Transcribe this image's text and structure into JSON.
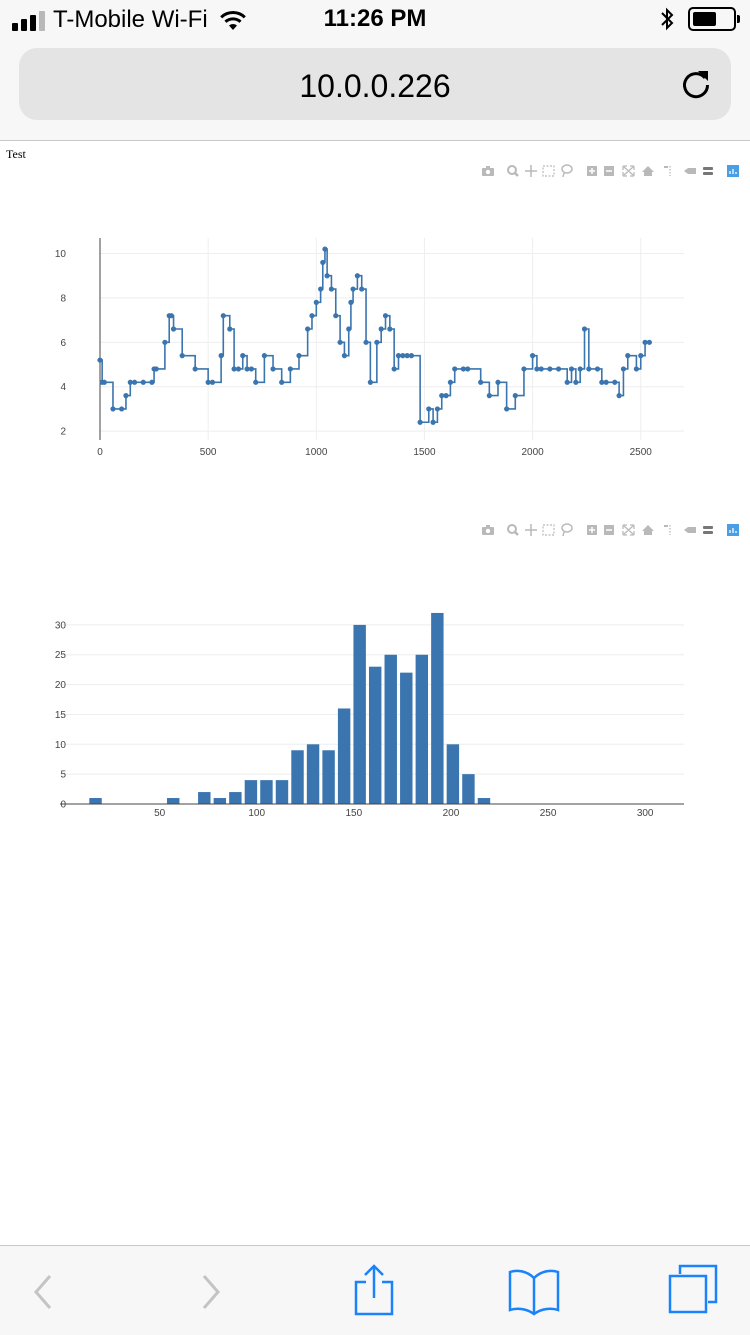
{
  "status_bar": {
    "carrier": "T-Mobile Wi-Fi",
    "time": "11:26 PM",
    "icons": [
      "signal-icon",
      "wifi-icon",
      "bluetooth-icon",
      "battery-icon"
    ]
  },
  "browser": {
    "url": "10.0.0.226",
    "toolbar_icons": [
      "back-icon",
      "forward-icon",
      "share-icon",
      "bookmarks-icon",
      "tabs-icon"
    ]
  },
  "page": {
    "label": "Test"
  },
  "modebar_icons": [
    "camera-icon",
    "zoom-icon",
    "pan-icon",
    "box-select-icon",
    "lasso-icon",
    "zoom-in-icon",
    "zoom-out-icon",
    "autoscale-icon",
    "reset-axes-icon",
    "spike-lines-icon",
    "hover-closest-icon",
    "hover-compare-icon",
    "plotly-logo-icon"
  ],
  "colors": {
    "series": "#3b75af",
    "grid": "#eeeeee",
    "axis": "#444444"
  },
  "chart_data": [
    {
      "type": "line",
      "mode": "lines+markers",
      "line_shape": "step",
      "x": [
        0,
        10,
        20,
        60,
        100,
        120,
        140,
        160,
        200,
        240,
        250,
        260,
        300,
        320,
        330,
        340,
        380,
        440,
        500,
        520,
        560,
        570,
        600,
        620,
        640,
        660,
        680,
        700,
        720,
        760,
        800,
        840,
        880,
        920,
        960,
        980,
        1000,
        1020,
        1030,
        1040,
        1050,
        1070,
        1090,
        1110,
        1130,
        1150,
        1160,
        1170,
        1190,
        1210,
        1230,
        1250,
        1280,
        1300,
        1320,
        1340,
        1360,
        1380,
        1400,
        1420,
        1440,
        1480,
        1520,
        1540,
        1560,
        1580,
        1600,
        1620,
        1640,
        1680,
        1700,
        1760,
        1800,
        1840,
        1880,
        1920,
        1960,
        2000,
        2020,
        2040,
        2080,
        2120,
        2160,
        2180,
        2200,
        2220,
        2240,
        2260,
        2300,
        2320,
        2340,
        2380,
        2400,
        2420,
        2440,
        2480,
        2500,
        2520,
        2540
      ],
      "y": [
        5.2,
        4.2,
        4.2,
        3.0,
        3.0,
        3.6,
        4.2,
        4.2,
        4.2,
        4.2,
        4.8,
        4.8,
        6.0,
        7.2,
        7.2,
        6.6,
        5.4,
        4.8,
        4.2,
        4.2,
        5.4,
        7.2,
        6.6,
        4.8,
        4.8,
        5.4,
        4.8,
        4.8,
        4.2,
        5.4,
        4.8,
        4.2,
        4.8,
        5.4,
        6.6,
        7.2,
        7.8,
        8.4,
        9.6,
        10.2,
        9.0,
        8.4,
        7.2,
        6.0,
        5.4,
        6.6,
        7.8,
        8.4,
        9.0,
        8.4,
        6.0,
        4.2,
        6.0,
        6.6,
        7.2,
        6.6,
        4.8,
        5.4,
        5.4,
        5.4,
        5.4,
        2.4,
        3.0,
        2.4,
        3.0,
        3.6,
        3.6,
        4.2,
        4.8,
        4.8,
        4.8,
        4.2,
        3.6,
        4.2,
        3.0,
        3.6,
        4.8,
        5.4,
        4.8,
        4.8,
        4.8,
        4.8,
        4.2,
        4.8,
        4.2,
        4.8,
        6.6,
        4.8,
        4.8,
        4.2,
        4.2,
        4.2,
        3.6,
        4.8,
        5.4,
        4.8,
        5.4,
        6.0,
        6.0
      ],
      "xlim": [
        0,
        2700
      ],
      "ylim": [
        1.6,
        10.7
      ],
      "x_ticks": [
        0,
        500,
        1000,
        1500,
        2000,
        2500
      ],
      "y_ticks": [
        2,
        4,
        6,
        8,
        10
      ],
      "grid": true
    },
    {
      "type": "bar",
      "x": [
        17,
        57,
        73,
        81,
        89,
        97,
        105,
        113,
        121,
        129,
        137,
        145,
        153,
        161,
        169,
        177,
        185,
        193,
        201,
        209,
        217
      ],
      "values": [
        1,
        1,
        2,
        1,
        2,
        4,
        4,
        4,
        9,
        10,
        9,
        16,
        30,
        23,
        25,
        22,
        25,
        32,
        10,
        5,
        1
      ],
      "bin_width": 8,
      "xlim": [
        9,
        320
      ],
      "ylim": [
        0,
        33.5
      ],
      "x_ticks": [
        50,
        100,
        150,
        200,
        250,
        300
      ],
      "y_ticks": [
        0,
        5,
        10,
        15,
        20,
        25,
        30
      ],
      "grid": true
    }
  ]
}
